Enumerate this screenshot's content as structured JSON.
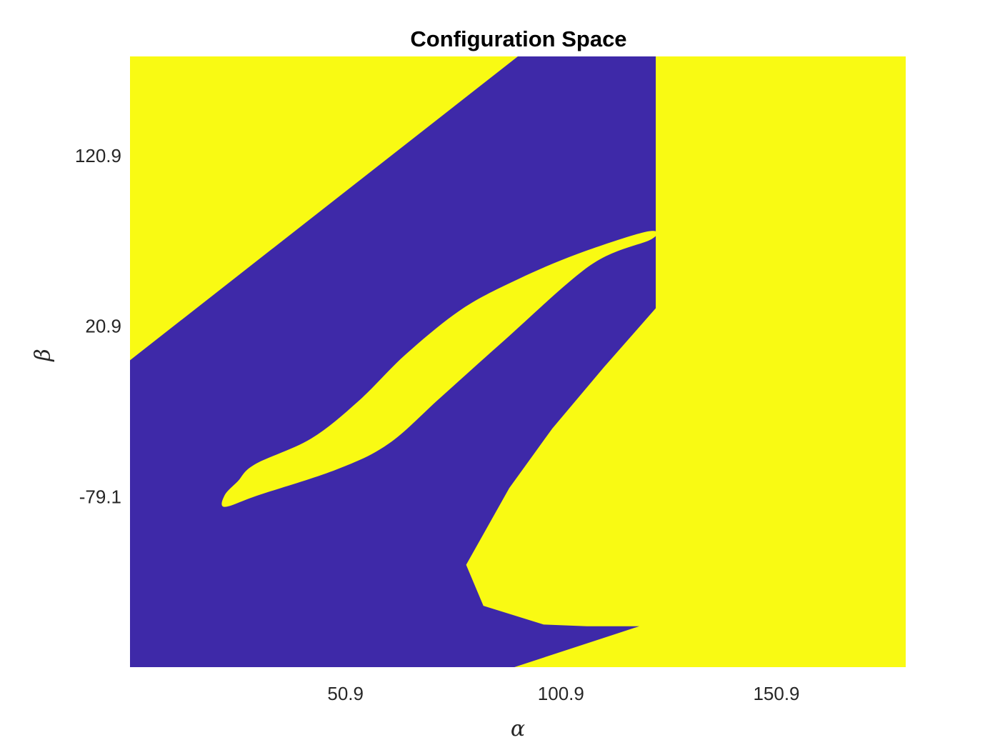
{
  "chart_data": {
    "type": "heatmap",
    "title": "Configuration Space",
    "xlabel": "α",
    "ylabel": "β",
    "xlim": [
      0.9,
      180.9
    ],
    "ylim": [
      -179.1,
      179.1
    ],
    "xticks": [
      "50.9",
      "100.9",
      "150.9"
    ],
    "xtick_values": [
      50.9,
      100.9,
      150.9
    ],
    "yticks": [
      "120.9",
      "20.9",
      "-79.1"
    ],
    "ytick_values": [
      120.9,
      20.9,
      -79.1
    ],
    "grid": false,
    "colors": {
      "free": "#f9fa13",
      "obstacle": "#3e29a8"
    },
    "regions": [
      {
        "name": "obstacle",
        "color": "#3e29a8",
        "outline": [
          [
            0.9,
            0.9
          ],
          [
            90.9,
            179.1
          ],
          [
            122.9,
            179.1
          ],
          [
            122.9,
            31.4
          ],
          [
            110.9,
            -3.1
          ],
          [
            98.9,
            -39.1
          ],
          [
            88.9,
            -74.1
          ],
          [
            78.9,
            -119.1
          ],
          [
            82.9,
            -143.1
          ],
          [
            96.9,
            -154.1
          ],
          [
            106.9,
            -155.1
          ],
          [
            119.1,
            -155.1
          ],
          [
            90.1,
            -179.1
          ],
          [
            0.9,
            -179.1
          ]
        ]
      },
      {
        "name": "free",
        "color": "#f9fa13",
        "outline": [
          [
            22.9,
            -85.1
          ],
          [
            30.9,
            -78.1
          ],
          [
            48.9,
            -63.1
          ],
          [
            60.9,
            -48.1
          ],
          [
            72.9,
            -21.1
          ],
          [
            87.9,
            12.9
          ],
          [
            107.9,
            56.9
          ],
          [
            121.9,
            71.9
          ],
          [
            120.9,
            76.4
          ],
          [
            104.9,
            63.4
          ],
          [
            90.9,
            48.4
          ],
          [
            77.9,
            30.9
          ],
          [
            64.9,
            4.4
          ],
          [
            53.9,
            -23.1
          ],
          [
            42.9,
            -45.1
          ],
          [
            29.9,
            -60.1
          ],
          [
            25.9,
            -70.1
          ],
          [
            22.9,
            -78.1
          ]
        ]
      }
    ]
  }
}
